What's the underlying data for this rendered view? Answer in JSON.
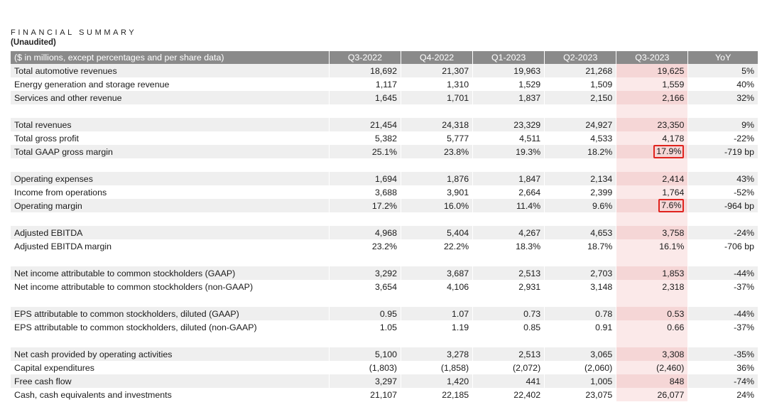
{
  "title": "FINANCIAL SUMMARY",
  "subtitle": "(Unaudited)",
  "header": [
    "($ in millions, except percentages and per share data)",
    "Q3-2022",
    "Q4-2022",
    "Q1-2023",
    "Q2-2023",
    "Q3-2023",
    "YoY"
  ],
  "colors": {
    "header_bg": "#8a8a8a",
    "row_shade": "#efefef",
    "highlight_column": "#f5d6d6",
    "box_outline": "#e0231e"
  },
  "boxed_cells": [
    "Total GAAP gross margin / Q3-2023",
    "Operating margin / Q3-2023"
  ],
  "rows": [
    {
      "label": "Total automotive revenues",
      "values": [
        "18,692",
        "21,307",
        "19,963",
        "21,268",
        "19,625",
        "5%"
      ]
    },
    {
      "label": "Energy generation and storage revenue",
      "values": [
        "1,117",
        "1,310",
        "1,529",
        "1,509",
        "1,559",
        "40%"
      ]
    },
    {
      "label": "Services and other revenue",
      "values": [
        "1,645",
        "1,701",
        "1,837",
        "2,150",
        "2,166",
        "32%"
      ]
    },
    {
      "label": "Total revenues",
      "values": [
        "21,454",
        "24,318",
        "23,329",
        "24,927",
        "23,350",
        "9%"
      ]
    },
    {
      "label": "Total gross profit",
      "values": [
        "5,382",
        "5,777",
        "4,511",
        "4,533",
        "4,178",
        "-22%"
      ]
    },
    {
      "label": "Total GAAP gross margin",
      "values": [
        "25.1%",
        "23.8%",
        "19.3%",
        "18.2%",
        "17.9%",
        "-719 bp"
      ]
    },
    {
      "label": "Operating expenses",
      "values": [
        "1,694",
        "1,876",
        "1,847",
        "2,134",
        "2,414",
        "43%"
      ]
    },
    {
      "label": "Income from operations",
      "values": [
        "3,688",
        "3,901",
        "2,664",
        "2,399",
        "1,764",
        "-52%"
      ]
    },
    {
      "label": "Operating margin",
      "values": [
        "17.2%",
        "16.0%",
        "11.4%",
        "9.6%",
        "7.6%",
        "-964 bp"
      ]
    },
    {
      "label": "Adjusted EBITDA",
      "values": [
        "4,968",
        "5,404",
        "4,267",
        "4,653",
        "3,758",
        "-24%"
      ]
    },
    {
      "label": "Adjusted EBITDA margin",
      "values": [
        "23.2%",
        "22.2%",
        "18.3%",
        "18.7%",
        "16.1%",
        "-706 bp"
      ]
    },
    {
      "label": "Net income attributable to common stockholders (GAAP)",
      "values": [
        "3,292",
        "3,687",
        "2,513",
        "2,703",
        "1,853",
        "-44%"
      ]
    },
    {
      "label": "Net income attributable to common stockholders (non-GAAP)",
      "values": [
        "3,654",
        "4,106",
        "2,931",
        "3,148",
        "2,318",
        "-37%"
      ]
    },
    {
      "label": "EPS attributable to common stockholders, diluted (GAAP)",
      "values": [
        "0.95",
        "1.07",
        "0.73",
        "0.78",
        "0.53",
        "-44%"
      ]
    },
    {
      "label": "EPS attributable to common stockholders, diluted (non-GAAP)",
      "values": [
        "1.05",
        "1.19",
        "0.85",
        "0.91",
        "0.66",
        "-37%"
      ]
    },
    {
      "label": "Net cash provided by operating activities",
      "values": [
        "5,100",
        "3,278",
        "2,513",
        "3,065",
        "3,308",
        "-35%"
      ]
    },
    {
      "label": "Capital expenditures",
      "values": [
        "(1,803)",
        "(1,858)",
        "(2,072)",
        "(2,060)",
        "(2,460)",
        "36%"
      ]
    },
    {
      "label": "Free cash flow",
      "values": [
        "3,297",
        "1,420",
        "441",
        "1,005",
        "848",
        "-74%"
      ]
    },
    {
      "label": "Cash, cash equivalents and investments",
      "values": [
        "21,107",
        "22,185",
        "22,402",
        "23,075",
        "26,077",
        "24%"
      ]
    }
  ]
}
